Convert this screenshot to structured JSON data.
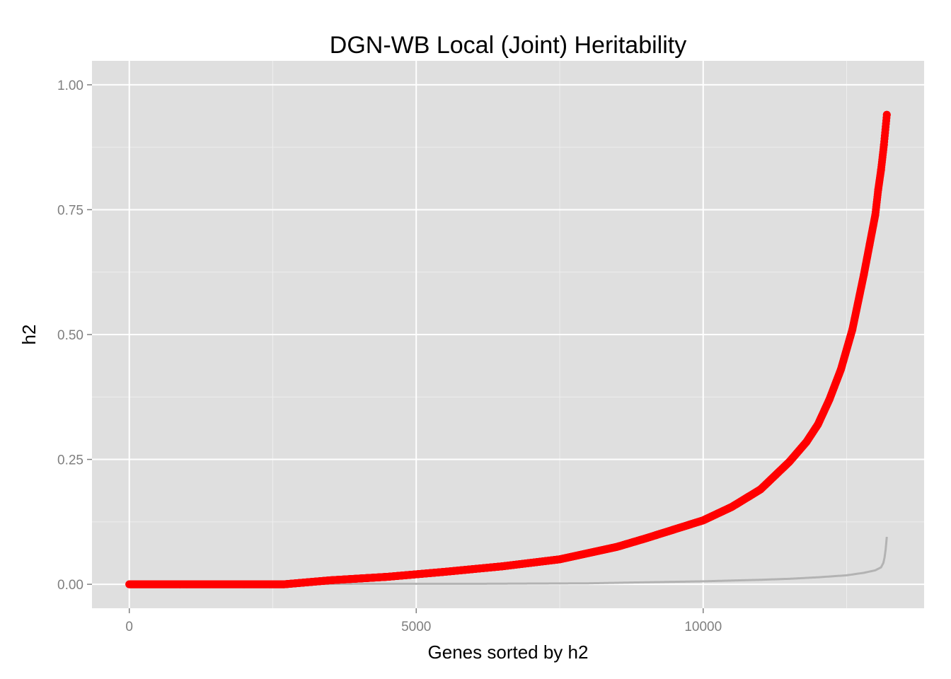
{
  "chart_data": {
    "type": "scatter",
    "title": "DGN-WB Local (Joint) Heritability",
    "xlabel": "Genes sorted by h2",
    "ylabel": "h2",
    "xlim": [
      -650,
      13850
    ],
    "ylim": [
      -0.048,
      1.048
    ],
    "x_ticks": [
      0,
      5000,
      10000
    ],
    "x_tick_labels": [
      "0",
      "5000",
      "10000"
    ],
    "y_ticks": [
      0,
      0.25,
      0.5,
      0.75,
      1.0
    ],
    "y_tick_labels": [
      "0.00",
      "0.25",
      "0.50",
      "0.75",
      "1.00"
    ],
    "grid": true,
    "legend": "none",
    "colors": {
      "panel": "#dfdfdf",
      "grid_major": "#ffffff",
      "grid_minor": "#eeeeee",
      "tick": "#7f7f7f",
      "points": "#ff0000",
      "line": "#b3b3b3"
    },
    "series": [
      {
        "type": "points",
        "color": "#ff0000",
        "x": [
          0,
          1000,
          2000,
          2700,
          3500,
          4500,
          5500,
          6500,
          7500,
          8500,
          9000,
          9500,
          10000,
          10500,
          11000,
          11500,
          11800,
          12000,
          12200,
          12400,
          12600,
          12800,
          12900,
          13000,
          13050,
          13100,
          13150,
          13200
        ],
        "y": [
          0,
          0,
          0,
          0,
          0.008,
          0.015,
          0.025,
          0.036,
          0.05,
          0.075,
          0.092,
          0.11,
          0.128,
          0.155,
          0.19,
          0.245,
          0.285,
          0.32,
          0.37,
          0.43,
          0.51,
          0.62,
          0.68,
          0.74,
          0.79,
          0.83,
          0.88,
          0.94
        ]
      },
      {
        "type": "line",
        "color": "#b3b3b3",
        "x": [
          0,
          2000,
          4000,
          6000,
          8000,
          9000,
          10000,
          11000,
          11500,
          12000,
          12500,
          12800,
          13000,
          13100,
          13150,
          13180,
          13200
        ],
        "y": [
          0,
          0,
          0.001,
          0.001,
          0.002,
          0.004,
          0.006,
          0.009,
          0.011,
          0.014,
          0.018,
          0.023,
          0.028,
          0.034,
          0.045,
          0.07,
          0.095
        ]
      }
    ]
  }
}
